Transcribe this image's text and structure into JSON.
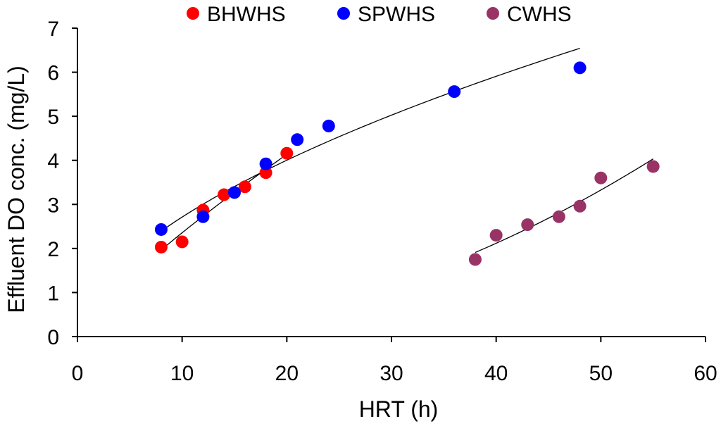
{
  "chart_data": {
    "type": "scatter",
    "title": "",
    "xlabel": "HRT (h)",
    "ylabel": "Effluent DO conc. (mg/L)",
    "xlim": [
      0,
      60
    ],
    "ylim": [
      0,
      7
    ],
    "xticks": [
      0,
      10,
      20,
      30,
      40,
      50,
      60
    ],
    "yticks": [
      0,
      1,
      2,
      3,
      4,
      5,
      6,
      7
    ],
    "grid": false,
    "legend_position": "top",
    "series": [
      {
        "name": "BHWHS",
        "color": "#ff0000",
        "points": [
          [
            8,
            2.03
          ],
          [
            10,
            2.15
          ],
          [
            12,
            2.87
          ],
          [
            14,
            3.22
          ],
          [
            16,
            3.4
          ],
          [
            18,
            3.72
          ],
          [
            20,
            4.16
          ]
        ],
        "trend": {
          "type": "power",
          "x_range": [
            8,
            20
          ]
        }
      },
      {
        "name": "SPWHS",
        "color": "#0000ff",
        "points": [
          [
            8,
            2.43
          ],
          [
            12,
            2.72
          ],
          [
            15,
            3.27
          ],
          [
            18,
            3.92
          ],
          [
            21,
            4.47
          ],
          [
            24,
            4.78
          ],
          [
            36,
            5.56
          ],
          [
            48,
            6.1
          ]
        ],
        "trend": {
          "type": "power",
          "x_range": [
            8,
            48
          ]
        }
      },
      {
        "name": "CWHS",
        "color": "#993366",
        "points": [
          [
            38,
            1.75
          ],
          [
            40,
            2.3
          ],
          [
            43,
            2.54
          ],
          [
            46,
            2.72
          ],
          [
            48,
            2.96
          ],
          [
            50,
            3.6
          ],
          [
            55,
            3.86
          ]
        ],
        "trend": {
          "type": "power",
          "x_range": [
            38,
            55
          ]
        }
      }
    ]
  }
}
